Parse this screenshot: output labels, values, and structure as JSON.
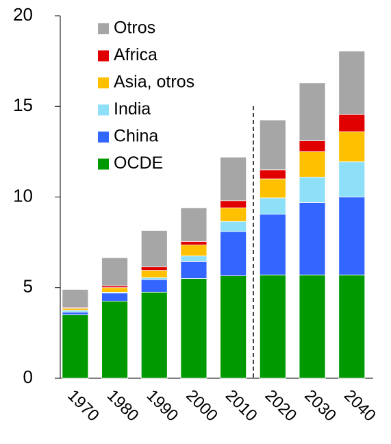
{
  "chart_data": {
    "type": "stacked_bar",
    "categories": [
      "1970",
      "1980",
      "1990",
      "2000",
      "2010",
      "2020",
      "2030",
      "2040"
    ],
    "series": [
      {
        "name": "OCDE",
        "color": "#009900",
        "values": [
          3.5,
          4.25,
          4.75,
          5.5,
          5.65,
          5.7,
          5.7,
          5.7
        ]
      },
      {
        "name": "China",
        "color": "#3366ff",
        "values": [
          0.15,
          0.45,
          0.7,
          0.95,
          2.45,
          3.35,
          4.0,
          4.3
        ]
      },
      {
        "name": "India",
        "color": "#8ee0f8",
        "values": [
          0.1,
          0.05,
          0.1,
          0.3,
          0.55,
          0.9,
          1.4,
          1.95
        ]
      },
      {
        "name": "Asia, otros",
        "color": "#ffc000",
        "values": [
          0.1,
          0.25,
          0.4,
          0.6,
          0.75,
          1.05,
          1.4,
          1.65
        ]
      },
      {
        "name": "Africa",
        "color": "#e00000",
        "values": [
          0.05,
          0.1,
          0.2,
          0.2,
          0.4,
          0.5,
          0.6,
          0.95
        ]
      },
      {
        "name": "Otros",
        "color": "#a6a6a6",
        "values": [
          1.0,
          1.55,
          2.0,
          1.85,
          2.4,
          2.75,
          3.2,
          3.5
        ]
      }
    ],
    "ylim": [
      0,
      20
    ],
    "yticks": [
      0,
      5,
      10,
      15,
      20
    ],
    "legend": "upper left"
  }
}
